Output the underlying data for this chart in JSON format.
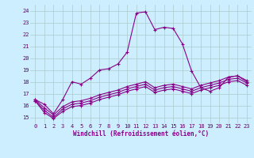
{
  "xlabel": "Windchill (Refroidissement éolien,°C)",
  "background_color": "#cceeff",
  "grid_color": "#aacccc",
  "line_color": "#880088",
  "x_ticks": [
    0,
    1,
    2,
    3,
    4,
    5,
    6,
    7,
    8,
    9,
    10,
    11,
    12,
    13,
    14,
    15,
    16,
    17,
    18,
    19,
    20,
    21,
    22,
    23
  ],
  "ylim": [
    14.5,
    24.5
  ],
  "xlim": [
    -0.5,
    23.5
  ],
  "yticks": [
    15,
    16,
    17,
    18,
    19,
    20,
    21,
    22,
    23,
    24
  ],
  "line1_x": [
    0,
    1,
    2,
    3,
    4,
    5,
    6,
    7,
    8,
    9,
    10,
    11,
    12,
    13,
    14,
    15,
    16,
    17,
    18,
    19,
    20,
    21,
    22,
    23
  ],
  "line1_y": [
    16.5,
    16.1,
    15.3,
    16.5,
    18.0,
    17.8,
    18.3,
    19.0,
    19.1,
    19.5,
    20.5,
    23.8,
    23.9,
    22.4,
    22.6,
    22.5,
    21.2,
    18.9,
    17.5,
    17.2,
    17.5,
    18.4,
    18.5,
    18.0
  ],
  "line2_x": [
    0,
    1,
    2,
    3,
    4,
    5,
    6,
    7,
    8,
    9,
    10,
    11,
    12,
    13,
    14,
    15,
    16,
    17,
    18,
    19,
    20,
    21,
    22,
    23
  ],
  "line2_y": [
    16.5,
    15.8,
    15.2,
    15.9,
    16.3,
    16.4,
    16.6,
    16.9,
    17.1,
    17.3,
    17.6,
    17.8,
    18.0,
    17.5,
    17.7,
    17.8,
    17.6,
    17.4,
    17.7,
    17.9,
    18.1,
    18.4,
    18.5,
    18.1
  ],
  "line3_x": [
    0,
    1,
    2,
    3,
    4,
    5,
    6,
    7,
    8,
    9,
    10,
    11,
    12,
    13,
    14,
    15,
    16,
    17,
    18,
    19,
    20,
    21,
    22,
    23
  ],
  "line3_y": [
    16.4,
    15.6,
    15.0,
    15.7,
    16.1,
    16.2,
    16.4,
    16.7,
    16.9,
    17.1,
    17.4,
    17.6,
    17.8,
    17.3,
    17.5,
    17.6,
    17.4,
    17.2,
    17.5,
    17.7,
    17.9,
    18.2,
    18.3,
    17.9
  ],
  "line4_x": [
    0,
    1,
    2,
    3,
    4,
    5,
    6,
    7,
    8,
    9,
    10,
    11,
    12,
    13,
    14,
    15,
    16,
    17,
    18,
    19,
    20,
    21,
    22,
    23
  ],
  "line4_y": [
    16.4,
    15.4,
    14.9,
    15.5,
    15.9,
    16.0,
    16.2,
    16.5,
    16.7,
    16.9,
    17.2,
    17.4,
    17.6,
    17.1,
    17.3,
    17.4,
    17.2,
    17.0,
    17.3,
    17.5,
    17.7,
    18.0,
    18.1,
    17.7
  ]
}
